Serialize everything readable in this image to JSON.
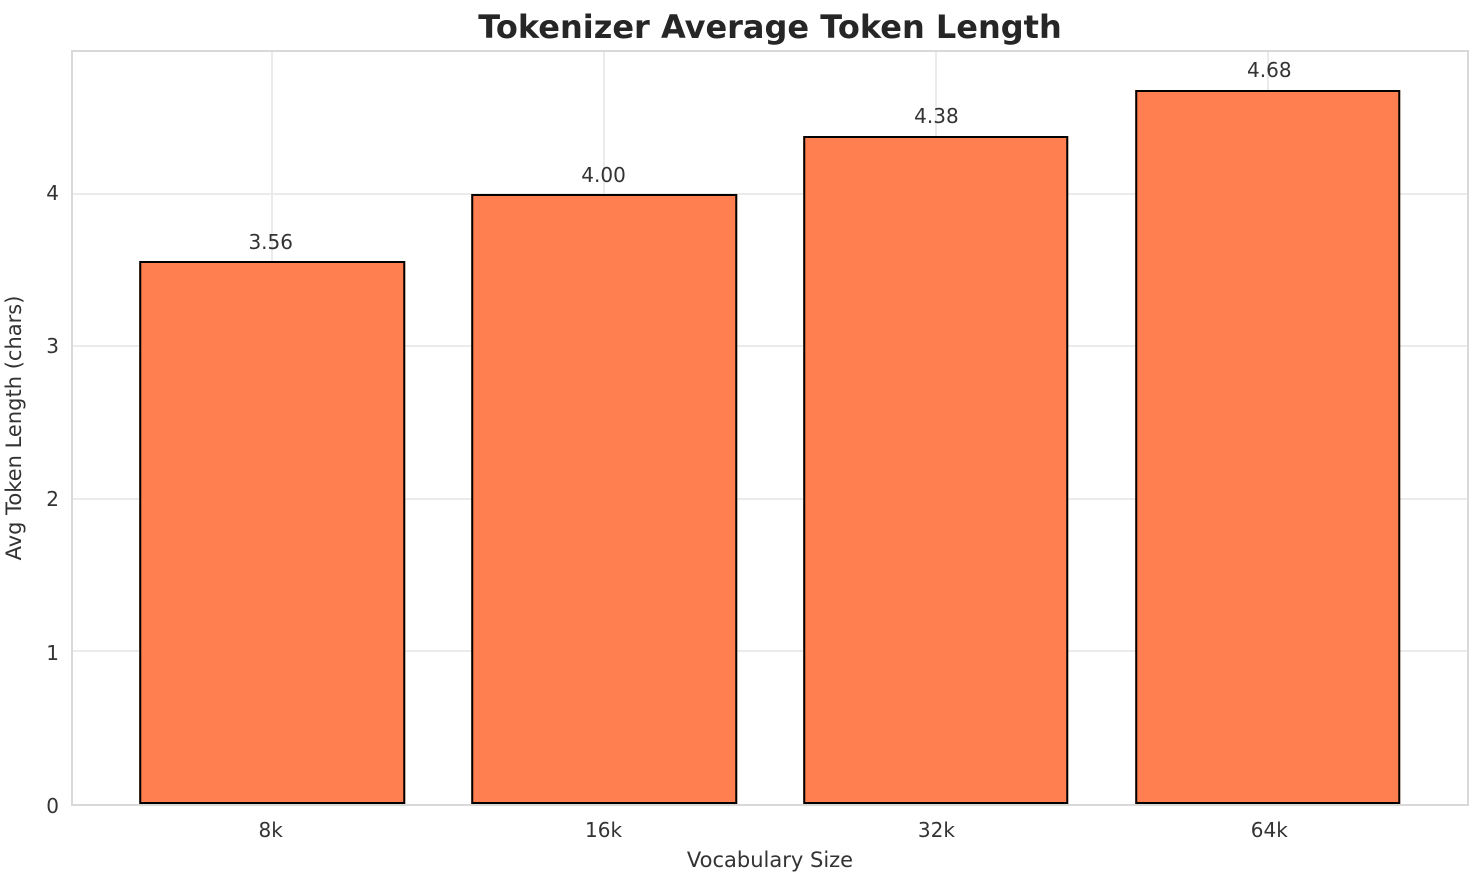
{
  "chart_data": {
    "type": "bar",
    "title": "Tokenizer Average Token Length",
    "xlabel": "Vocabulary Size",
    "ylabel": "Avg Token Length (chars)",
    "categories": [
      "8k",
      "16k",
      "32k",
      "64k"
    ],
    "values": [
      3.56,
      4.0,
      4.38,
      4.68
    ],
    "value_labels": [
      "3.56",
      "4.00",
      "4.38",
      "4.68"
    ],
    "yticks": [
      0,
      1,
      2,
      3,
      4
    ],
    "ylim": [
      0,
      4.93
    ],
    "xlim_pad_units": 0.6,
    "bar_width_units": 0.8,
    "grid": true,
    "legend": "none",
    "colors": {
      "bar_fill": "#FF7F50",
      "bar_edge": "#000000",
      "gridline": "#ebebeb",
      "spine": "#d9d9d9",
      "title_text": "#262626",
      "tick_text": "#333333"
    }
  }
}
